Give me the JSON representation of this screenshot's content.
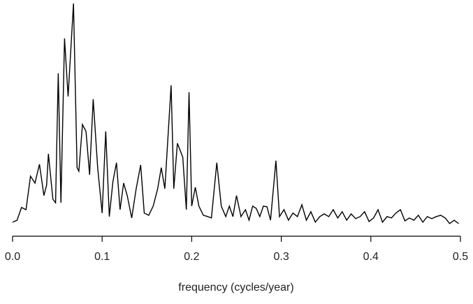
{
  "chart_data": {
    "type": "line",
    "xlabel": "frequency (cycles/year)",
    "xlim": [
      0,
      0.5
    ],
    "xticks": [
      {
        "value": 0,
        "label": "0.0"
      },
      0.1,
      0.2,
      0.3,
      0.4,
      {
        "value": 0.5,
        "label": "0.5"
      }
    ],
    "ylim": [
      0,
      100
    ],
    "color": "#000000",
    "x": [
      0,
      0.005,
      0.01,
      0.015,
      0.02,
      0.025,
      0.03,
      0.035,
      0.038,
      0.04,
      0.045,
      0.048,
      0.051,
      0.054,
      0.058,
      0.062,
      0.068,
      0.072,
      0.074,
      0.078,
      0.082,
      0.086,
      0.09,
      0.095,
      0.1,
      0.104,
      0.108,
      0.112,
      0.116,
      0.12,
      0.124,
      0.128,
      0.133,
      0.138,
      0.143,
      0.147,
      0.152,
      0.157,
      0.162,
      0.166,
      0.17,
      0.177,
      0.18,
      0.184,
      0.19,
      0.194,
      0.197,
      0.2,
      0.204,
      0.208,
      0.213,
      0.218,
      0.222,
      0.228,
      0.233,
      0.238,
      0.242,
      0.246,
      0.25,
      0.255,
      0.26,
      0.264,
      0.268,
      0.272,
      0.276,
      0.28,
      0.284,
      0.288,
      0.294,
      0.298,
      0.303,
      0.308,
      0.313,
      0.318,
      0.323,
      0.328,
      0.333,
      0.338,
      0.343,
      0.348,
      0.353,
      0.358,
      0.363,
      0.368,
      0.373,
      0.378,
      0.383,
      0.388,
      0.393,
      0.398,
      0.403,
      0.408,
      0.413,
      0.418,
      0.423,
      0.428,
      0.433,
      0.438,
      0.443,
      0.448,
      0.453,
      0.458,
      0.463,
      0.468,
      0.473,
      0.478,
      0.483,
      0.488,
      0.493,
      0.498
    ],
    "values": [
      2.2,
      3.1,
      8.8,
      7.8,
      22.8,
      19.7,
      28.1,
      14.1,
      18.8,
      32.8,
      12.5,
      10.9,
      68.8,
      10.9,
      84.4,
      58.4,
      100,
      26.6,
      25,
      45.9,
      42.8,
      23.4,
      57.2,
      26.6,
      6.3,
      42.8,
      4.7,
      20.3,
      28.8,
      7.8,
      19.7,
      14.1,
      4.1,
      17.2,
      27.8,
      6.3,
      5.3,
      9.4,
      17.2,
      26.6,
      17.2,
      63.4,
      17.2,
      37.5,
      31.3,
      7.8,
      60.3,
      9.4,
      17.8,
      9.4,
      5.3,
      4.7,
      4.1,
      28.8,
      9.4,
      4.7,
      9.4,
      4.7,
      14.1,
      4.7,
      7.8,
      3.1,
      9.4,
      8.4,
      4.7,
      9.4,
      9.1,
      3.1,
      29.7,
      4.7,
      7.8,
      3.1,
      6.3,
      4.7,
      10,
      3.1,
      6.9,
      2.2,
      4.7,
      5.9,
      4.7,
      7.8,
      4.1,
      6.9,
      3.1,
      5.9,
      3.8,
      4.7,
      6.9,
      2.5,
      4.1,
      7.8,
      2.2,
      4.7,
      4.1,
      6.3,
      7.8,
      2.8,
      4.1,
      3.1,
      5.3,
      2.2,
      4.7,
      3.8,
      4.7,
      5.3,
      4.1,
      1.6,
      3.1,
      1.6
    ]
  }
}
